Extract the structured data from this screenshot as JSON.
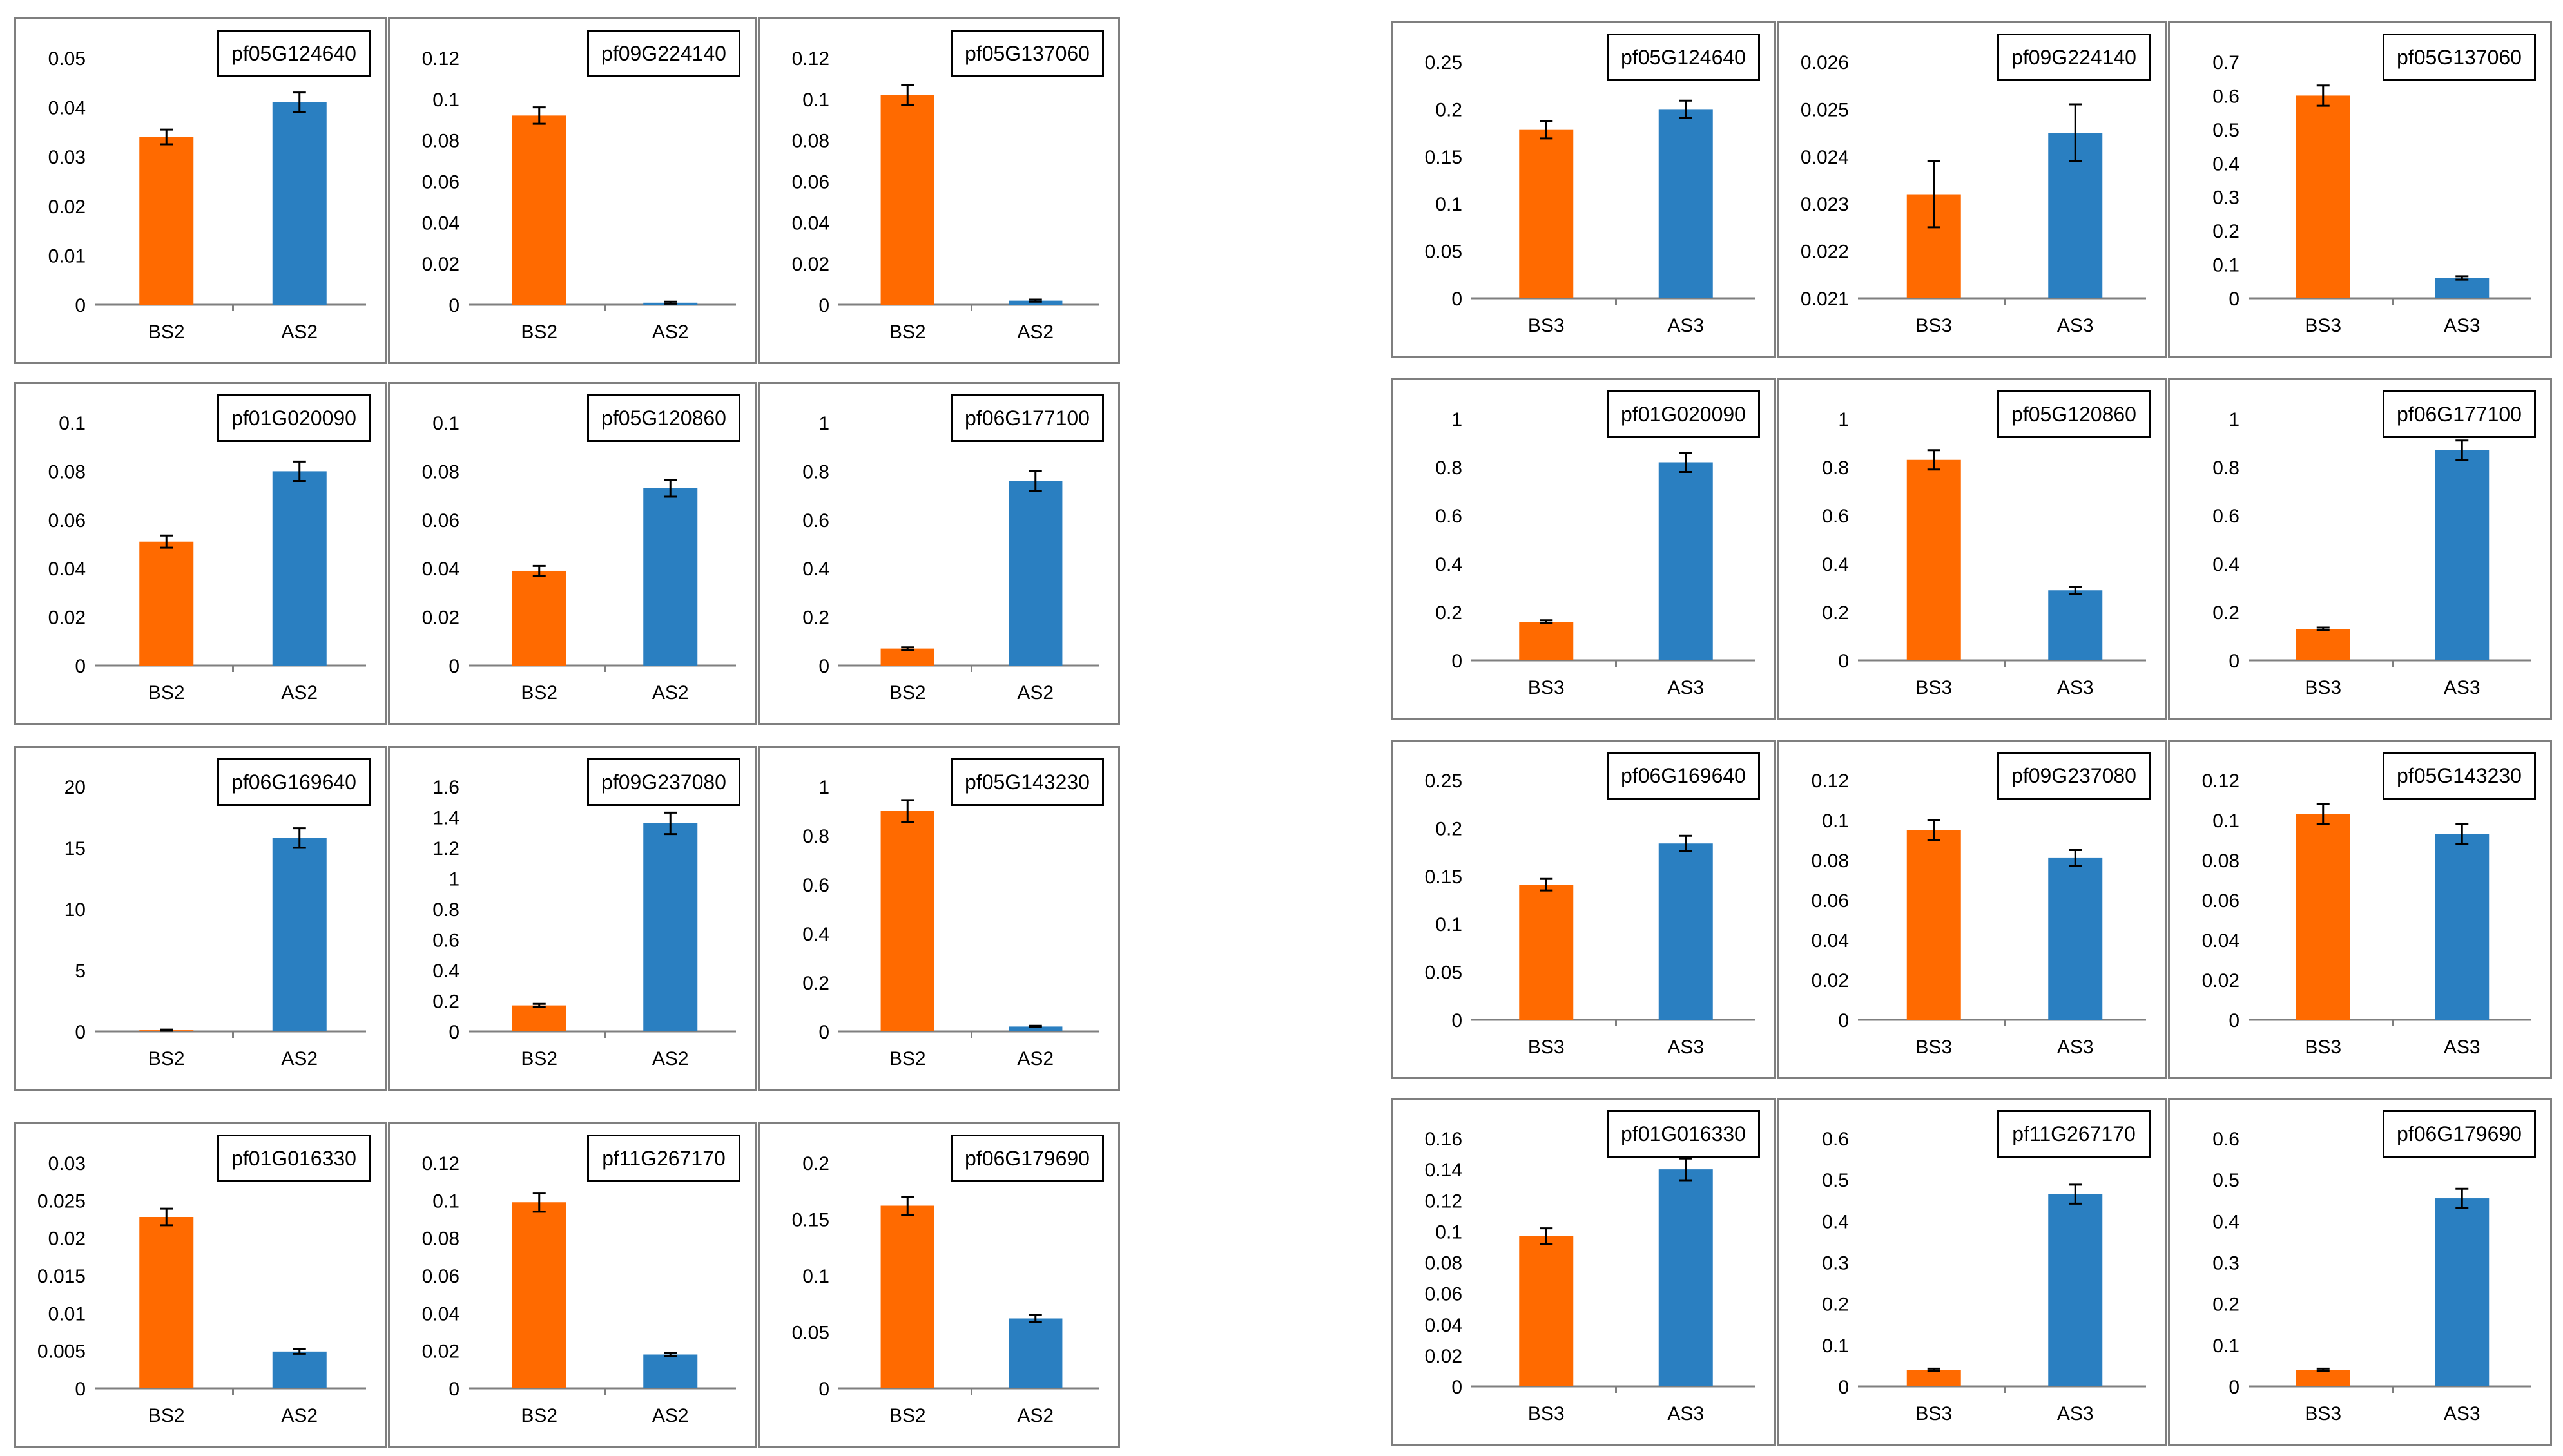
{
  "colors": {
    "before": "#ff6a00",
    "after": "#2a7fc1",
    "axis": "#7f7f7f",
    "panel_border": "#7f7f7f"
  },
  "chart_data": [
    {
      "type": "bar",
      "gene": "pf05G124640",
      "categories": [
        "BS2",
        "AS2"
      ],
      "values": [
        0.034,
        0.041
      ],
      "errors": [
        0.0015,
        0.002
      ],
      "ylim": [
        0,
        0.05
      ],
      "yticks": [
        "0",
        "0.01",
        "0.02",
        "0.03",
        "0.04",
        "0.05"
      ]
    },
    {
      "type": "bar",
      "gene": "pf09G224140",
      "categories": [
        "BS2",
        "AS2"
      ],
      "values": [
        0.092,
        0.001
      ],
      "errors": [
        0.004,
        0.0005
      ],
      "ylim": [
        0,
        0.12
      ],
      "yticks": [
        "0",
        "0.02",
        "0.04",
        "0.06",
        "0.08",
        "0.1",
        "0.12"
      ]
    },
    {
      "type": "bar",
      "gene": "pf05G137060",
      "categories": [
        "BS2",
        "AS2"
      ],
      "values": [
        0.102,
        0.002
      ],
      "errors": [
        0.005,
        0.0005
      ],
      "ylim": [
        0,
        0.12
      ],
      "yticks": [
        "0",
        "0.02",
        "0.04",
        "0.06",
        "0.08",
        "0.1",
        "0.12"
      ]
    },
    {
      "type": "bar",
      "gene": "pf05G124640",
      "categories": [
        "BS3",
        "AS3"
      ],
      "values": [
        0.178,
        0.2
      ],
      "errors": [
        0.009,
        0.009
      ],
      "ylim": [
        0,
        0.25
      ],
      "yticks": [
        "0",
        "0.05",
        "0.1",
        "0.15",
        "0.2",
        "0.25"
      ]
    },
    {
      "type": "bar",
      "gene": "pf09G224140",
      "categories": [
        "BS3",
        "AS3"
      ],
      "values": [
        0.0232,
        0.0245
      ],
      "errors": [
        0.0007,
        0.0006
      ],
      "ylim": [
        0.021,
        0.026
      ],
      "yticks": [
        "0.021",
        "0.022",
        "0.023",
        "0.024",
        "0.025",
        "0.026"
      ]
    },
    {
      "type": "bar",
      "gene": "pf05G137060",
      "categories": [
        "BS3",
        "AS3"
      ],
      "values": [
        0.6,
        0.06
      ],
      "errors": [
        0.03,
        0.005
      ],
      "ylim": [
        0,
        0.7
      ],
      "yticks": [
        "0",
        "0.1",
        "0.2",
        "0.3",
        "0.4",
        "0.5",
        "0.6",
        "0.7"
      ]
    },
    {
      "type": "bar",
      "gene": "pf01G020090",
      "categories": [
        "BS2",
        "AS2"
      ],
      "values": [
        0.051,
        0.08
      ],
      "errors": [
        0.0025,
        0.004
      ],
      "ylim": [
        0,
        0.1
      ],
      "yticks": [
        "0",
        "0.02",
        "0.04",
        "0.06",
        "0.08",
        "0.1"
      ]
    },
    {
      "type": "bar",
      "gene": "pf05G120860",
      "categories": [
        "BS2",
        "AS2"
      ],
      "values": [
        0.039,
        0.073
      ],
      "errors": [
        0.002,
        0.0035
      ],
      "ylim": [
        0,
        0.1
      ],
      "yticks": [
        "0",
        "0.02",
        "0.04",
        "0.06",
        "0.08",
        "0.1"
      ]
    },
    {
      "type": "bar",
      "gene": "pf06G177100",
      "categories": [
        "BS2",
        "AS2"
      ],
      "values": [
        0.07,
        0.76
      ],
      "errors": [
        0.005,
        0.04
      ],
      "ylim": [
        0,
        1
      ],
      "yticks": [
        "0",
        "0.2",
        "0.4",
        "0.6",
        "0.8",
        "1"
      ]
    },
    {
      "type": "bar",
      "gene": "pf01G020090",
      "categories": [
        "BS3",
        "AS3"
      ],
      "values": [
        0.16,
        0.82
      ],
      "errors": [
        0.006,
        0.04
      ],
      "ylim": [
        0,
        1
      ],
      "yticks": [
        "0",
        "0.2",
        "0.4",
        "0.6",
        "0.8",
        "1"
      ]
    },
    {
      "type": "bar",
      "gene": "pf05G120860",
      "categories": [
        "BS3",
        "AS3"
      ],
      "values": [
        0.83,
        0.29
      ],
      "errors": [
        0.04,
        0.014
      ],
      "ylim": [
        0,
        1
      ],
      "yticks": [
        "0",
        "0.2",
        "0.4",
        "0.6",
        "0.8",
        "1"
      ]
    },
    {
      "type": "bar",
      "gene": "pf06G177100",
      "categories": [
        "BS3",
        "AS3"
      ],
      "values": [
        0.13,
        0.87
      ],
      "errors": [
        0.006,
        0.04
      ],
      "ylim": [
        0,
        1
      ],
      "yticks": [
        "0",
        "0.2",
        "0.4",
        "0.6",
        "0.8",
        "1"
      ]
    },
    {
      "type": "bar",
      "gene": "pf06G169640",
      "categories": [
        "BS2",
        "AS2"
      ],
      "values": [
        0.1,
        15.8
      ],
      "errors": [
        0.05,
        0.8
      ],
      "ylim": [
        0,
        20
      ],
      "yticks": [
        "0",
        "5",
        "10",
        "15",
        "20"
      ]
    },
    {
      "type": "bar",
      "gene": "pf09G237080",
      "categories": [
        "BS2",
        "AS2"
      ],
      "values": [
        0.17,
        1.36
      ],
      "errors": [
        0.01,
        0.07
      ],
      "ylim": [
        0,
        1.6
      ],
      "yticks": [
        "0",
        "0.2",
        "0.4",
        "0.6",
        "0.8",
        "1",
        "1.2",
        "1.4",
        "1.6"
      ]
    },
    {
      "type": "bar",
      "gene": "pf05G143230",
      "categories": [
        "BS2",
        "AS2"
      ],
      "values": [
        0.9,
        0.02
      ],
      "errors": [
        0.045,
        0.003
      ],
      "ylim": [
        0,
        1
      ],
      "yticks": [
        "0",
        "0.2",
        "0.4",
        "0.6",
        "0.8",
        "1"
      ]
    },
    {
      "type": "bar",
      "gene": "pf06G169640",
      "categories": [
        "BS3",
        "AS3"
      ],
      "values": [
        0.141,
        0.184
      ],
      "errors": [
        0.006,
        0.008
      ],
      "ylim": [
        0,
        0.25
      ],
      "yticks": [
        "0",
        "0.05",
        "0.1",
        "0.15",
        "0.2",
        "0.25"
      ]
    },
    {
      "type": "bar",
      "gene": "pf09G237080",
      "categories": [
        "BS3",
        "AS3"
      ],
      "values": [
        0.095,
        0.081
      ],
      "errors": [
        0.005,
        0.004
      ],
      "ylim": [
        0,
        0.12
      ],
      "yticks": [
        "0",
        "0.02",
        "0.04",
        "0.06",
        "0.08",
        "0.1",
        "0.12"
      ]
    },
    {
      "type": "bar",
      "gene": "pf05G143230",
      "categories": [
        "BS3",
        "AS3"
      ],
      "values": [
        0.103,
        0.093
      ],
      "errors": [
        0.005,
        0.005
      ],
      "ylim": [
        0,
        0.12
      ],
      "yticks": [
        "0",
        "0.02",
        "0.04",
        "0.06",
        "0.08",
        "0.1",
        "0.12"
      ]
    },
    {
      "type": "bar",
      "gene": "pf01G016330",
      "categories": [
        "BS2",
        "AS2"
      ],
      "values": [
        0.0228,
        0.0049
      ],
      "errors": [
        0.0011,
        0.0003
      ],
      "ylim": [
        0,
        0.03
      ],
      "yticks": [
        "0",
        "0.005",
        "0.01",
        "0.015",
        "0.02",
        "0.025",
        "0.03"
      ]
    },
    {
      "type": "bar",
      "gene": "pf11G267170",
      "categories": [
        "BS2",
        "AS2"
      ],
      "values": [
        0.099,
        0.018
      ],
      "errors": [
        0.005,
        0.001
      ],
      "ylim": [
        0,
        0.12
      ],
      "yticks": [
        "0",
        "0.02",
        "0.04",
        "0.06",
        "0.08",
        "0.1",
        "0.12"
      ]
    },
    {
      "type": "bar",
      "gene": "pf06G179690",
      "categories": [
        "BS2",
        "AS2"
      ],
      "values": [
        0.162,
        0.062
      ],
      "errors": [
        0.008,
        0.003
      ],
      "ylim": [
        0,
        0.2
      ],
      "yticks": [
        "0",
        "0.05",
        "0.1",
        "0.15",
        "0.2"
      ]
    },
    {
      "type": "bar",
      "gene": "pf01G016330",
      "categories": [
        "BS3",
        "AS3"
      ],
      "values": [
        0.097,
        0.14
      ],
      "errors": [
        0.005,
        0.007
      ],
      "ylim": [
        0,
        0.16
      ],
      "yticks": [
        "0",
        "0.02",
        "0.04",
        "0.06",
        "0.08",
        "0.1",
        "0.12",
        "0.14",
        "0.16"
      ]
    },
    {
      "type": "bar",
      "gene": "pf11G267170",
      "categories": [
        "BS3",
        "AS3"
      ],
      "values": [
        0.04,
        0.465
      ],
      "errors": [
        0.003,
        0.023
      ],
      "ylim": [
        0,
        0.6
      ],
      "yticks": [
        "0",
        "0.1",
        "0.2",
        "0.3",
        "0.4",
        "0.5",
        "0.6"
      ]
    },
    {
      "type": "bar",
      "gene": "pf06G179690",
      "categories": [
        "BS3",
        "AS3"
      ],
      "values": [
        0.04,
        0.455
      ],
      "errors": [
        0.003,
        0.023
      ],
      "ylim": [
        0,
        0.6
      ],
      "yticks": [
        "0",
        "0.1",
        "0.2",
        "0.3",
        "0.4",
        "0.5",
        "0.6"
      ]
    }
  ]
}
